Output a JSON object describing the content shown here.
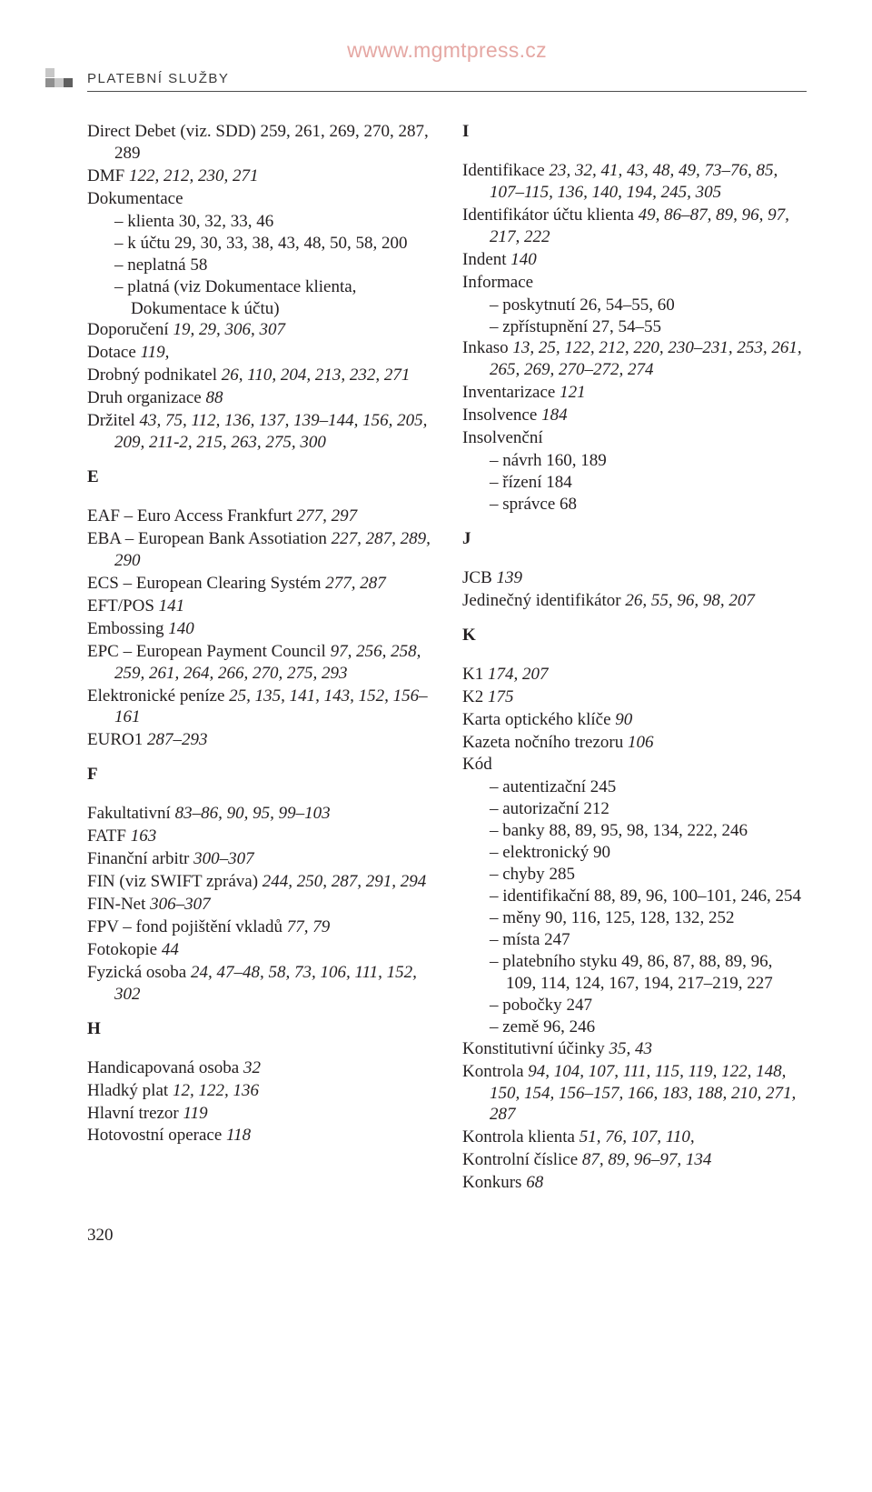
{
  "watermark": "wwww.mgmtpress.cz",
  "section_title": "PLATEBNÍ SLUŽBY",
  "page_number": "320",
  "left": {
    "e0": "Direct Debet (viz. SDD)  259, 261, 269, 270, 287, 289",
    "e1_a": "DMF  ",
    "e1_b": "122, 212, 230, 271",
    "e2": "Dokumentace",
    "e2s0_a": "klienta  ",
    "e2s0_b": "30, 32, 33, 46",
    "e2s1_a": "k účtu  ",
    "e2s1_b": "29, 30, 33, 38, 43, 48, 50, 58, 200",
    "e2s2_a": "neplatná  ",
    "e2s2_b": "58",
    "e2s3": "platná (viz Dokumentace klienta, Dokumentace k účtu)",
    "e3_a": "Doporučení  ",
    "e3_b": "19, 29, 306, 307",
    "e4_a": "Dotace  ",
    "e4_b": "119,",
    "e5_a": "Drobný podnikatel  ",
    "e5_b": "26, 110, 204, 213, 232, 271",
    "e6_a": "Druh organizace  ",
    "e6_b": "88",
    "e7_a": "Držitel  ",
    "e7_b": "43, 75, 112, 136, 137, 139–144, 156, 205, 209, 211-2, 215, 263, 275, 300",
    "hE": "E",
    "e8_a": "EAF – Euro Access Frankfurt  ",
    "e8_b": "277, 297",
    "e9_a": "EBA – European Bank Assotiation  ",
    "e9_b": "227, 287, 289, 290",
    "e10_a": "ECS – European Clearing Systém  ",
    "e10_b": "277, 287",
    "e11_a": "EFT/POS  ",
    "e11_b": "141",
    "e12_a": "Embossing  ",
    "e12_b": "140",
    "e13_a": "EPC – European Payment Council  ",
    "e13_b": "97, 256, 258, 259, 261, 264, 266, 270, 275, 293",
    "e14_a": "Elektronické peníze  ",
    "e14_b": "25, 135, 141, 143, 152, 156–161",
    "e15_a": "EURO1  ",
    "e15_b": "287–293",
    "hF": "F",
    "e16_a": "Fakultativní  ",
    "e16_b": "83–86, 90, 95, 99–103",
    "e17_a": "FATF  ",
    "e17_b": "163",
    "e18_a": "Finanční arbitr  ",
    "e18_b": "300–307",
    "e19_a": "FIN (viz SWIFT zpráva)  ",
    "e19_b": "244, 250, 287, 291, 294",
    "e20_a": "FIN-Net  ",
    "e20_b": "306–307",
    "e21_a": "FPV – fond pojištění vkladů  ",
    "e21_b": "77, 79",
    "e22_a": "Fotokopie  ",
    "e22_b": "44",
    "e23_a": "Fyzická osoba  ",
    "e23_b": "24, 47–48, 58, 73, 106, 111, 152, 302",
    "hH": "H",
    "e24_a": "Handicapovaná osoba  ",
    "e24_b": "32",
    "e25_a": "Hladký plat  ",
    "e25_b": "12, 122, 136",
    "e26_a": "Hlavní trezor  ",
    "e26_b": "119",
    "e27_a": "Hotovostní operace  ",
    "e27_b": "118"
  },
  "right": {
    "hI": "I",
    "r0_a": "Identifikace  ",
    "r0_b": "23, 32, 41, 43, 48, 49, 73–76, 85, 107–115, 136, 140, 194, 245, 305",
    "r1_a": "Identifikátor účtu klienta  ",
    "r1_b": "49, 86–87, 89, 96, 97, 217, 222",
    "r2_a": "Indent  ",
    "r2_b": "140",
    "r3": "Informace",
    "r3s0_a": "poskytnutí  ",
    "r3s0_b": "26, 54–55, 60",
    "r3s1_a": "zpřístupnění  ",
    "r3s1_b": "27, 54–55",
    "r4_a": "Inkaso  ",
    "r4_b": "13, 25, 122, 212, 220, 230–231, 253, 261, 265, 269, 270–272, 274",
    "r5_a": "Inventarizace  ",
    "r5_b": "121",
    "r6_a": "Insolvence  ",
    "r6_b": "184",
    "r7": "Insolvenční",
    "r7s0_a": "návrh  ",
    "r7s0_b": "160, 189",
    "r7s1_a": "řízení  ",
    "r7s1_b": "184",
    "r7s2_a": "správce  ",
    "r7s2_b": "68",
    "hJ": "J",
    "r8_a": "JCB  ",
    "r8_b": "139",
    "r9_a": "Jedinečný identifikátor  ",
    "r9_b": "26, 55, 96, 98, 207",
    "hK": "K",
    "r10_a": "K1  ",
    "r10_b": "174, 207",
    "r11_a": "K2  ",
    "r11_b": "175",
    "r12_a": "Karta optického klíče  ",
    "r12_b": "90",
    "r13_a": "Kazeta nočního trezoru  ",
    "r13_b": "106",
    "r14": "Kód",
    "r14s0_a": "autentizační  ",
    "r14s0_b": "245",
    "r14s1_a": "autorizační  ",
    "r14s1_b": "212",
    "r14s2_a": "banky  ",
    "r14s2_b": "88, 89, 95, 98, 134, 222, 246",
    "r14s3_a": "elektronický  ",
    "r14s3_b": "90",
    "r14s4_a": "chyby  ",
    "r14s4_b": "285",
    "r14s5_a": "identifikační  ",
    "r14s5_b": "88, 89, 96, 100–101, 246, 254",
    "r14s6_a": "měny  ",
    "r14s6_b": "90, 116, 125, 128, 132, 252",
    "r14s7_a": "místa  ",
    "r14s7_b": "247",
    "r14s8_a": "platebního styku  ",
    "r14s8_b": "49, 86, 87, 88, 89, 96, 109, 114, 124, 167, 194, 217–219, 227",
    "r14s9_a": "pobočky  ",
    "r14s9_b": "247",
    "r14s10_a": "země  ",
    "r14s10_b": "96, 246",
    "r15_a": "Konstitutivní účinky  ",
    "r15_b": "35, 43",
    "r16_a": "Kontrola  ",
    "r16_b": "94, 104, 107, 111, 115, 119, 122, 148, 150, 154, 156–157, 166, 183, 188, 210, 271, 287",
    "r17_a": "Kontrola klienta  ",
    "r17_b": "51, 76, 107, 110,",
    "r18_a": "Kontrolní číslice  ",
    "r18_b": "87, 89, 96–97, 134",
    "r19_a": "Konkurs  ",
    "r19_b": "68"
  }
}
